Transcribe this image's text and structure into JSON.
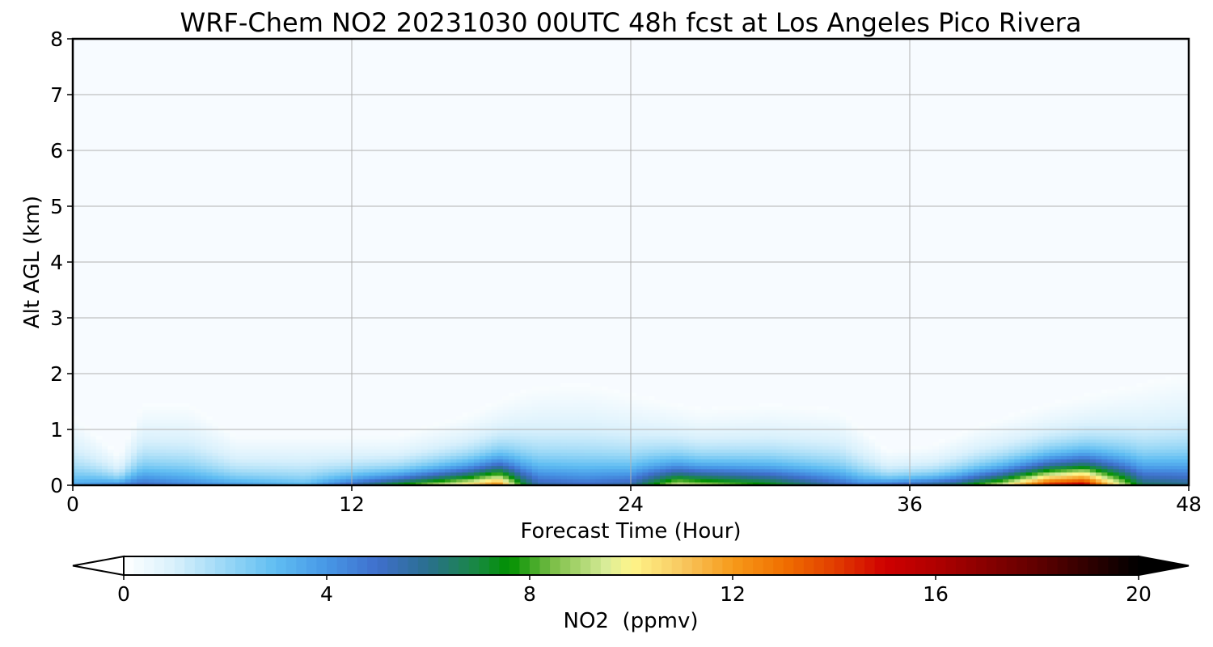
{
  "chart_data": {
    "type": "heatmap",
    "title": "WRF-Chem NO2  20231030 00UTC 48h fcst at Los Angeles Pico Rivera",
    "xlabel": "Forecast Time (Hour)",
    "ylabel": "Alt AGL (km)",
    "xlim": [
      0,
      48
    ],
    "ylim": [
      0,
      8
    ],
    "x_ticks": [
      "0",
      "12",
      "24",
      "36",
      "48"
    ],
    "y_ticks": [
      "0",
      "1",
      "2",
      "3",
      "4",
      "5",
      "6",
      "7",
      "8"
    ],
    "grid": true,
    "colorbar": {
      "label": "NO2  (ppmv)",
      "range": [
        0,
        20
      ],
      "ticks": [
        "0",
        "4",
        "8",
        "12",
        "16",
        "20"
      ],
      "extend": "both",
      "stops": [
        {
          "v": 0,
          "c": "#ffffff"
        },
        {
          "v": 1,
          "c": "#d8f0fc"
        },
        {
          "v": 2,
          "c": "#9ad8f6"
        },
        {
          "v": 3,
          "c": "#5fbdf2"
        },
        {
          "v": 4,
          "c": "#4797e6"
        },
        {
          "v": 5,
          "c": "#3f6fcc"
        },
        {
          "v": 6,
          "c": "#2a6f8e"
        },
        {
          "v": 7,
          "c": "#178a3e"
        },
        {
          "v": 7.6,
          "c": "#009000"
        },
        {
          "v": 8.5,
          "c": "#7fc04a"
        },
        {
          "v": 9.5,
          "c": "#d8ec98"
        },
        {
          "v": 10,
          "c": "#fff58a"
        },
        {
          "v": 11,
          "c": "#f8c860"
        },
        {
          "v": 12,
          "c": "#f79a1a"
        },
        {
          "v": 13,
          "c": "#f07000"
        },
        {
          "v": 14,
          "c": "#e23e00"
        },
        {
          "v": 15,
          "c": "#cf0000"
        },
        {
          "v": 16,
          "c": "#b00000"
        },
        {
          "v": 18,
          "c": "#600000"
        },
        {
          "v": 20,
          "c": "#000000"
        }
      ]
    },
    "boundary_layer_top_km": [
      [
        0,
        1.4
      ],
      [
        2,
        0.6
      ],
      [
        3,
        1.6
      ],
      [
        5,
        1.6
      ],
      [
        7,
        1.0
      ],
      [
        10,
        1.0
      ],
      [
        14,
        1.0
      ],
      [
        17,
        1.4
      ],
      [
        19,
        1.8
      ],
      [
        20,
        1.95
      ],
      [
        22,
        2.0
      ],
      [
        24,
        1.8
      ],
      [
        27,
        1.5
      ],
      [
        30,
        1.6
      ],
      [
        33,
        1.5
      ],
      [
        35,
        0.7
      ],
      [
        37,
        0.8
      ],
      [
        39,
        1.2
      ],
      [
        42,
        1.6
      ],
      [
        45,
        1.9
      ],
      [
        48,
        2.2
      ]
    ],
    "max_no2_ppmv": [
      [
        0,
        2.0
      ],
      [
        3,
        3.5
      ],
      [
        6,
        2.5
      ],
      [
        10,
        1.5
      ],
      [
        14,
        6.0
      ],
      [
        17,
        9.0
      ],
      [
        18.3,
        11.0
      ],
      [
        19.3,
        6.0
      ],
      [
        20,
        4.0
      ],
      [
        22,
        3.5
      ],
      [
        24,
        4.0
      ],
      [
        26,
        8.0
      ],
      [
        30,
        6.0
      ],
      [
        34,
        3.0
      ],
      [
        38,
        5.0
      ],
      [
        40,
        8.0
      ],
      [
        42,
        13.0
      ],
      [
        43.5,
        14.0
      ],
      [
        44.5,
        10.0
      ],
      [
        46,
        5.0
      ],
      [
        48,
        4.5
      ]
    ]
  }
}
